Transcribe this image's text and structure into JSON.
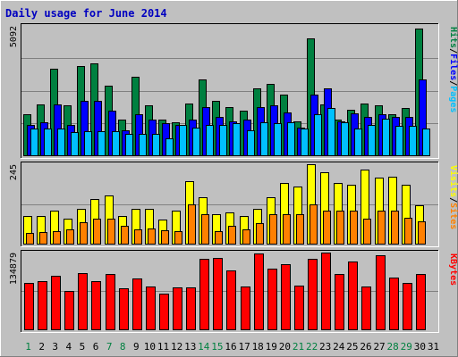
{
  "title": "Daily usage for June 2014",
  "colors": {
    "background": "#C0C0C0",
    "title": "#0000C0",
    "hits": "#008040",
    "files": "#0000FF",
    "pages": "#00C0FF",
    "visits": "#FFFF00",
    "sites": "#FF8000",
    "kbytes": "#FF0000",
    "gridline": "#808080",
    "weekend_label": "#008040",
    "weekday_label": "#000000"
  },
  "panels": {
    "top": {
      "max_label": "5092",
      "legend": [
        "Hits",
        "Files",
        "Pages"
      ]
    },
    "middle": {
      "max_label": "245",
      "legend": [
        "Visits",
        "Sites"
      ]
    },
    "bottom": {
      "max_label": "134879",
      "legend": [
        "KBytes"
      ]
    }
  },
  "chart_data": {
    "type": "bar",
    "title": "Daily usage for June 2014",
    "categories": [
      "1",
      "2",
      "3",
      "4",
      "5",
      "6",
      "7",
      "8",
      "9",
      "10",
      "11",
      "12",
      "13",
      "14",
      "15",
      "16",
      "17",
      "18",
      "19",
      "20",
      "21",
      "22",
      "23",
      "24",
      "25",
      "26",
      "27",
      "28",
      "29",
      "30",
      "31"
    ],
    "weekend_days": [
      1,
      7,
      8,
      14,
      15,
      21,
      22,
      28,
      29
    ],
    "panels": [
      {
        "name": "hits_files_pages",
        "ylim": [
          0,
          5092
        ],
        "series": [
          {
            "name": "Hits",
            "color": "#008040",
            "values": [
              1600,
              2000,
              3400,
              1950,
              3500,
              3600,
              2750,
              1400,
              3100,
              1950,
              1400,
              1300,
              2050,
              3000,
              2150,
              1900,
              1750,
              2650,
              2800,
              2400,
              1350,
              4600,
              2000,
              1400,
              1800,
              2050,
              1950,
              1600,
              1850,
              5000,
              0
            ]
          },
          {
            "name": "Files",
            "color": "#0000FF",
            "values": [
              1200,
              1300,
              2000,
              1200,
              2150,
              2150,
              1750,
              1000,
              1600,
              1400,
              1250,
              1200,
              1400,
              1900,
              1500,
              1350,
              1400,
              1900,
              1950,
              1700,
              1100,
              2400,
              2650,
              1350,
              1650,
              1500,
              1600,
              1500,
              1500,
              3000,
              0
            ]
          },
          {
            "name": "Pages",
            "color": "#00C0FF",
            "values": [
              1050,
              1050,
              1050,
              900,
              950,
              950,
              950,
              850,
              850,
              850,
              650,
              1200,
              1100,
              1200,
              1200,
              1250,
              1000,
              1300,
              1250,
              1300,
              1050,
              1600,
              1850,
              1300,
              1050,
              1200,
              1450,
              1150,
              1150,
              1050,
              0
            ]
          }
        ]
      },
      {
        "name": "visits_sites",
        "ylim": [
          0,
          245
        ],
        "series": [
          {
            "name": "Visits",
            "color": "#FFFF00",
            "values": [
              84,
              84,
              101,
              76,
              107,
              138,
              150,
              84,
              107,
              107,
              73,
              101,
              192,
              143,
              90,
              95,
              84,
              107,
              143,
              187,
              175,
              245,
              220,
              187,
              182,
              228,
              204,
              207,
              183,
              119,
              0
            ]
          },
          {
            "name": "Sites",
            "color": "#FF8000",
            "values": [
              34,
              36,
              39,
              45,
              65,
              76,
              77,
              54,
              44,
              46,
              40,
              39,
              120,
              91,
              39,
              55,
              45,
              64,
              90,
              90,
              90,
              120,
              103,
              101,
              101,
              78,
              101,
              101,
              79,
              70,
              0
            ]
          }
        ]
      },
      {
        "name": "kbytes",
        "ylim": [
          0,
          134879
        ],
        "series": [
          {
            "name": "KBytes",
            "color": "#FF0000",
            "values": [
              82000,
              84000,
              94000,
              67000,
              99000,
              84000,
              97000,
              72000,
              90000,
              75000,
              62000,
              73000,
              73000,
              124000,
              126000,
              104000,
              76000,
              134000,
              107000,
              115000,
              77000,
              124000,
              134879,
              98000,
              119000,
              76000,
              130000,
              91000,
              81000,
              97000,
              0
            ]
          }
        ]
      }
    ]
  }
}
